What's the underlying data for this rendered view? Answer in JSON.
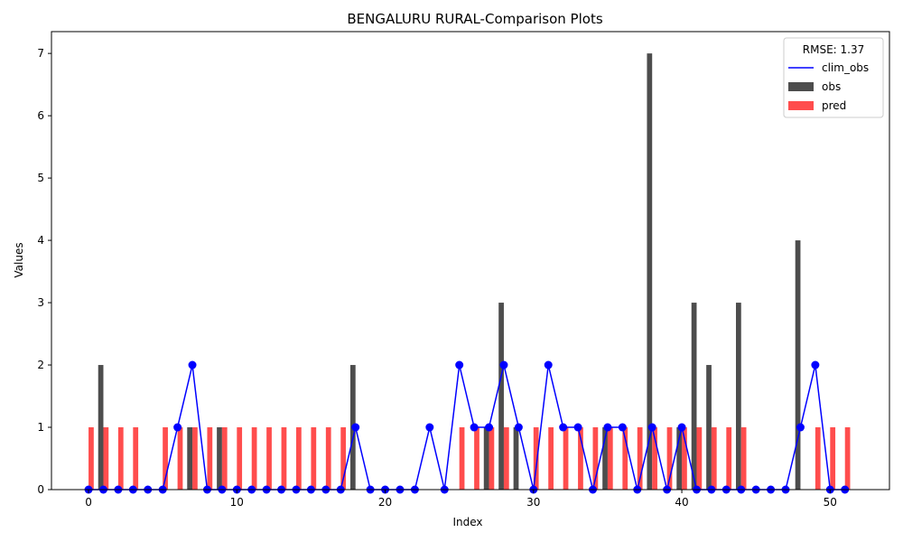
{
  "chart_data": {
    "type": "bar",
    "title": "BENGALURU RURAL-Comparison Plots",
    "xlabel": "Index",
    "ylabel": "Values",
    "xlim": [
      -2.5,
      54.0
    ],
    "ylim": [
      0,
      7.35
    ],
    "xticks": [
      0,
      10,
      20,
      30,
      40,
      50
    ],
    "yticks": [
      0,
      1,
      2,
      3,
      4,
      5,
      6,
      7
    ],
    "grid": false,
    "legend_position": "top-right",
    "legend_title": "RMSE: 1.37",
    "x": [
      0,
      1,
      2,
      3,
      4,
      5,
      6,
      7,
      8,
      9,
      10,
      11,
      12,
      13,
      14,
      15,
      16,
      17,
      18,
      19,
      20,
      21,
      22,
      23,
      24,
      25,
      26,
      27,
      28,
      29,
      30,
      31,
      32,
      33,
      34,
      35,
      36,
      37,
      38,
      39,
      40,
      41,
      42,
      43,
      44,
      45,
      46,
      47,
      48,
      49,
      50,
      51
    ],
    "series": [
      {
        "name": "clim_obs",
        "kind": "line",
        "color": "#0000ff",
        "values": [
          0,
          0,
          0,
          0,
          0,
          0,
          1,
          2,
          0,
          0,
          0,
          0,
          0,
          0,
          0,
          0,
          0,
          0,
          1,
          0,
          0,
          0,
          0,
          1,
          0,
          2,
          1,
          1,
          2,
          1,
          0,
          2,
          1,
          1,
          0,
          1,
          1,
          0,
          1,
          0,
          1,
          0,
          0,
          0,
          0,
          0,
          0,
          0,
          1,
          2,
          0,
          0
        ]
      },
      {
        "name": "obs",
        "kind": "bar",
        "color": "#4d4d4d",
        "values": [
          0,
          2,
          0,
          0,
          0,
          0,
          0,
          1,
          0,
          1,
          0,
          0,
          0,
          0,
          0,
          0,
          0,
          0,
          2,
          0,
          0,
          0,
          0,
          0,
          0,
          0,
          0,
          1,
          3,
          1,
          0,
          0,
          0,
          0,
          0,
          1,
          0,
          0,
          7,
          0,
          1,
          3,
          2,
          0,
          3,
          0,
          0,
          0,
          4,
          0,
          0,
          0
        ]
      },
      {
        "name": "pred",
        "kind": "bar",
        "color": "#ff4d4d",
        "values": [
          1,
          1,
          1,
          1,
          0,
          1,
          1,
          1,
          1,
          1,
          1,
          1,
          1,
          1,
          1,
          1,
          1,
          1,
          0,
          0,
          0,
          0,
          0,
          0,
          0,
          1,
          1,
          1,
          1,
          0,
          1,
          1,
          1,
          1,
          1,
          1,
          1,
          1,
          1,
          1,
          1,
          1,
          1,
          1,
          1,
          0,
          0,
          0,
          0,
          1,
          1,
          1
        ]
      }
    ]
  }
}
